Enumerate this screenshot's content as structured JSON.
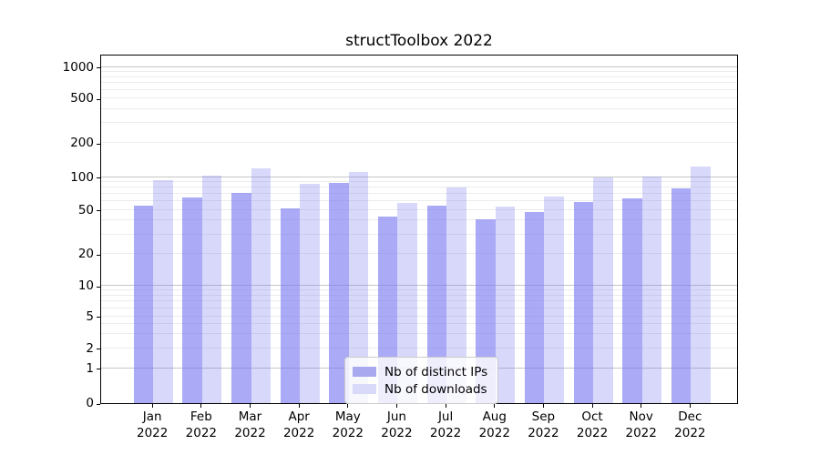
{
  "title": "structToolbox 2022",
  "chart_data": {
    "type": "bar",
    "title": "structToolbox 2022",
    "yscale": "symlog",
    "grid": true,
    "legend_position": "lower center",
    "categories": [
      "Jan 2022",
      "Feb 2022",
      "Mar 2022",
      "Apr 2022",
      "May 2022",
      "Jun 2022",
      "Jul 2022",
      "Aug 2022",
      "Sep 2022",
      "Oct 2022",
      "Nov 2022",
      "Dec 2022"
    ],
    "x_tick_months": [
      "Jan",
      "Feb",
      "Mar",
      "Apr",
      "May",
      "Jun",
      "Jul",
      "Aug",
      "Sep",
      "Oct",
      "Nov",
      "Dec"
    ],
    "x_tick_year": "2022",
    "y_ticks": [
      0,
      1,
      2,
      5,
      10,
      20,
      50,
      100,
      200,
      500,
      1000
    ],
    "ylim": [
      0,
      1150
    ],
    "series": [
      {
        "name": "Nb of distinct IPs",
        "color": "rgba(121,121,240,0.63)",
        "legend_color": "#a9a9f0",
        "values": [
          55,
          65,
          71,
          51,
          88,
          43,
          55,
          41,
          48,
          59,
          64,
          79
        ]
      },
      {
        "name": "Nb of downloads",
        "color": "rgba(121,121,240,0.29)",
        "legend_color": "#d9d9f9",
        "values": [
          94,
          103,
          120,
          87,
          110,
          58,
          80,
          54,
          66,
          100,
          101,
          124
        ]
      }
    ]
  },
  "colors": {
    "grid_major": "#c6c6c6",
    "grid_minor": "#ececec",
    "axis": "#000000",
    "text": "#000000",
    "background": "#ffffff"
  }
}
